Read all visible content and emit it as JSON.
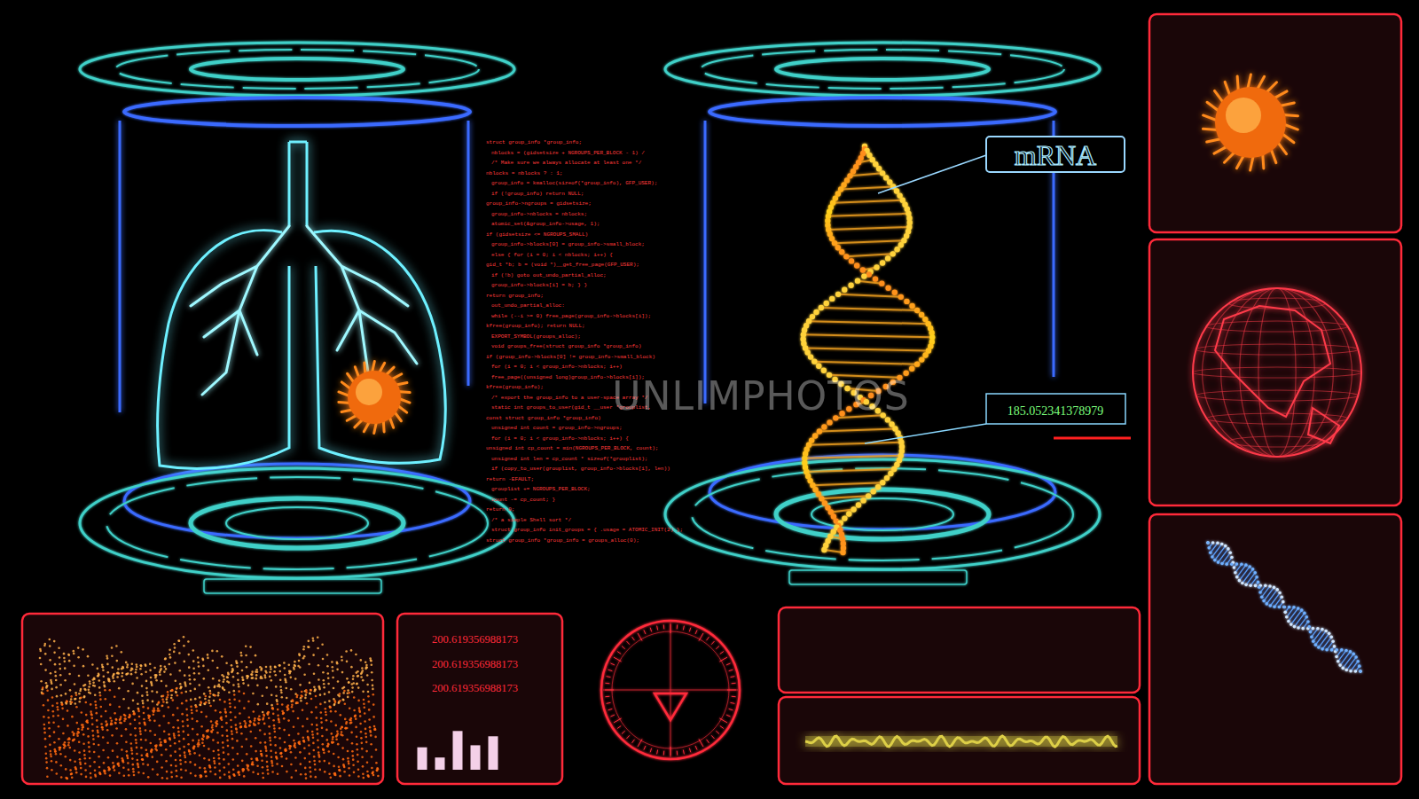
{
  "labels": {
    "mrna": "mRNA",
    "readout": "185.052341378979",
    "watermark": "UNLIMPHOTOS"
  },
  "readings": [
    "200.619356988173",
    "200.619356988173",
    "200.619356988173"
  ],
  "code_lines": [
    "struct group_info *group_info;",
    "nblocks = (gidsetsize + NGROUPS_PER_BLOCK - 1) /",
    "/* Make sure we always allocate at least one */",
    "nblocks = nblocks ? : 1;",
    "group_info = kmalloc(sizeof(*group_info), GFP_USER);",
    "if (!group_info) return NULL;",
    "group_info->ngroups = gidsetsize;",
    "group_info->nblocks = nblocks;",
    "atomic_set(&group_info->usage, 1);",
    "if (gidsetsize <= NGROUPS_SMALL)",
    "group_info->blocks[0] = group_info->small_block;",
    "else { for (i = 0; i < nblocks; i++) {",
    "gid_t *b; b = (void *)__get_free_page(GFP_USER);",
    "if (!b) goto out_undo_partial_alloc;",
    "group_info->blocks[i] = b; } }",
    "return group_info;",
    "out_undo_partial_alloc:",
    "while (--i >= 0) free_page(group_info->blocks[i]);",
    "kfree(group_info); return NULL;",
    "EXPORT_SYMBOL(groups_alloc);",
    "void groups_free(struct group_info *group_info)",
    "if (group_info->blocks[0] != group_info->small_block)",
    "for (i = 0; i < group_info->nblocks; i++)",
    "free_page((unsigned long)group_info->blocks[i]);",
    "kfree(group_info);",
    "/* export the group_info to a user-space array */",
    "static int groups_to_user(gid_t __user *grouplist,",
    "const struct group_info *group_info)",
    "unsigned int count = group_info->ngroups;",
    "for (i = 0; i < group_info->nblocks; i++) {",
    "unsigned int cp_count = min(NGROUPS_PER_BLOCK, count);",
    "unsigned int len = cp_count * sizeof(*grouplist);",
    "if (copy_to_user(grouplist, group_info->blocks[i], len))",
    "return -EFAULT;",
    "grouplist += NGROUPS_PER_BLOCK;",
    "count -= cp_count; }",
    "return 0;",
    "/* a simple Shell sort */",
    "struct group_info init_groups = { .usage = ATOMIC_INIT(2) };",
    "struct group_info *group_info = groups_alloc(0);"
  ],
  "chart_data": {
    "type": "bar",
    "categories": [
      null,
      null,
      null,
      null,
      null
    ],
    "values": [
      0.55,
      0.3,
      0.95,
      0.6,
      0.82
    ],
    "color": "#f4d0e8",
    "ylim": [
      0,
      1
    ],
    "tick_labels": false,
    "grid": false
  }
}
